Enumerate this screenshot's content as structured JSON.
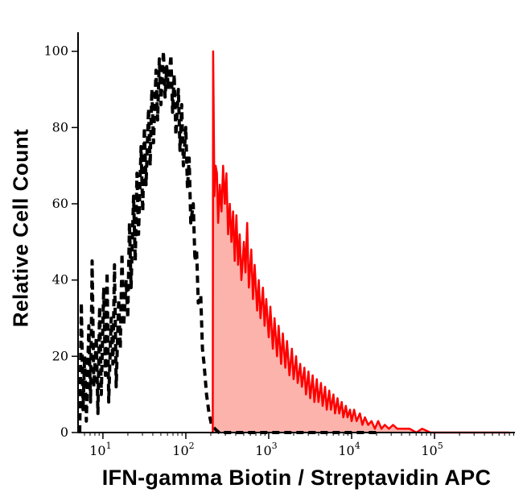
{
  "figure": {
    "background": "#ffffff"
  },
  "chart_data": {
    "type": "area",
    "subtype": "flow-cytometry-histogram-overlay",
    "title": "",
    "xlabel": "IFN-gamma Biotin / Streptavidin APC",
    "ylabel": "Relative Cell Count",
    "x_scale": "log10",
    "x_log_range": [
      0.7,
      5.97
    ],
    "x_ticks": [
      1,
      2,
      3,
      4,
      5
    ],
    "x_tick_base": "10",
    "ylim": [
      0,
      105
    ],
    "y_ticks": [
      0,
      20,
      40,
      60,
      80,
      100
    ],
    "grid": false,
    "legend": "none",
    "axis_color": "#000000",
    "points_format": "log10_x_vs_relative_count",
    "series": [
      {
        "name": "negative-control-black-dashed",
        "color": "#000000",
        "dash": "9 6",
        "width": 4,
        "fill": "none",
        "points": [
          [
            0.72,
            0
          ],
          [
            0.74,
            34
          ],
          [
            0.76,
            6
          ],
          [
            0.78,
            20
          ],
          [
            0.8,
            3
          ],
          [
            0.83,
            28
          ],
          [
            0.85,
            8
          ],
          [
            0.87,
            45
          ],
          [
            0.89,
            12
          ],
          [
            0.92,
            25
          ],
          [
            0.94,
            5
          ],
          [
            0.96,
            33
          ],
          [
            0.98,
            10
          ],
          [
            1.01,
            38
          ],
          [
            1.03,
            15
          ],
          [
            1.05,
            42
          ],
          [
            1.07,
            8
          ],
          [
            1.1,
            30
          ],
          [
            1.12,
            18
          ],
          [
            1.14,
            44
          ],
          [
            1.16,
            12
          ],
          [
            1.19,
            35
          ],
          [
            1.21,
            22
          ],
          [
            1.23,
            47
          ],
          [
            1.25,
            28
          ],
          [
            1.28,
            40
          ],
          [
            1.3,
            30
          ],
          [
            1.32,
            55
          ],
          [
            1.34,
            38
          ],
          [
            1.37,
            62
          ],
          [
            1.39,
            45
          ],
          [
            1.41,
            68
          ],
          [
            1.43,
            52
          ],
          [
            1.46,
            75
          ],
          [
            1.48,
            58
          ],
          [
            1.5,
            80
          ],
          [
            1.52,
            65
          ],
          [
            1.55,
            85
          ],
          [
            1.57,
            70
          ],
          [
            1.59,
            90
          ],
          [
            1.61,
            76
          ],
          [
            1.64,
            95
          ],
          [
            1.66,
            82
          ],
          [
            1.68,
            98
          ],
          [
            1.7,
            86
          ],
          [
            1.73,
            100
          ],
          [
            1.75,
            88
          ],
          [
            1.77,
            96
          ],
          [
            1.79,
            90
          ],
          [
            1.82,
            99
          ],
          [
            1.84,
            84
          ],
          [
            1.86,
            94
          ],
          [
            1.88,
            78
          ],
          [
            1.91,
            90
          ],
          [
            1.93,
            74
          ],
          [
            1.95,
            86
          ],
          [
            1.97,
            70
          ],
          [
            2.0,
            80
          ],
          [
            2.02,
            64
          ],
          [
            2.04,
            72
          ],
          [
            2.06,
            55
          ],
          [
            2.09,
            60
          ],
          [
            2.11,
            45
          ],
          [
            2.13,
            48
          ],
          [
            2.15,
            34
          ],
          [
            2.18,
            36
          ],
          [
            2.2,
            22
          ],
          [
            2.22,
            18
          ],
          [
            2.25,
            10
          ],
          [
            2.28,
            5
          ],
          [
            2.31,
            2
          ],
          [
            2.35,
            1
          ],
          [
            2.4,
            0
          ],
          [
            2.55,
            0
          ],
          [
            2.75,
            0
          ],
          [
            2.95,
            0
          ],
          [
            3.15,
            0
          ],
          [
            3.35,
            0
          ],
          [
            3.55,
            0
          ],
          [
            3.75,
            0
          ],
          [
            3.95,
            0
          ],
          [
            4.15,
            0
          ],
          [
            4.35,
            0
          ]
        ]
      },
      {
        "name": "stained-red-filled",
        "color": "#fe0000",
        "dash": "",
        "width": 2.5,
        "fill": "#fbb3ac",
        "points": [
          [
            2.31,
            0
          ],
          [
            2.325,
            0
          ],
          [
            2.33,
            100
          ],
          [
            2.345,
            62
          ],
          [
            2.36,
            70
          ],
          [
            2.375,
            68
          ],
          [
            2.39,
            55
          ],
          [
            2.41,
            65
          ],
          [
            2.43,
            58
          ],
          [
            2.45,
            70
          ],
          [
            2.47,
            60
          ],
          [
            2.49,
            68
          ],
          [
            2.51,
            52
          ],
          [
            2.53,
            60
          ],
          [
            2.55,
            50
          ],
          [
            2.57,
            58
          ],
          [
            2.59,
            45
          ],
          [
            2.61,
            57
          ],
          [
            2.63,
            44
          ],
          [
            2.65,
            52
          ],
          [
            2.67,
            40
          ],
          [
            2.7,
            50
          ],
          [
            2.72,
            42
          ],
          [
            2.74,
            55
          ],
          [
            2.76,
            38
          ],
          [
            2.79,
            48
          ],
          [
            2.81,
            35
          ],
          [
            2.83,
            44
          ],
          [
            2.86,
            32
          ],
          [
            2.88,
            40
          ],
          [
            2.9,
            30
          ],
          [
            2.93,
            38
          ],
          [
            2.95,
            28
          ],
          [
            2.97,
            35
          ],
          [
            3.0,
            25
          ],
          [
            3.02,
            33
          ],
          [
            3.05,
            22
          ],
          [
            3.07,
            30
          ],
          [
            3.1,
            20
          ],
          [
            3.12,
            28
          ],
          [
            3.15,
            18
          ],
          [
            3.17,
            26
          ],
          [
            3.2,
            17
          ],
          [
            3.22,
            24
          ],
          [
            3.25,
            15
          ],
          [
            3.28,
            22
          ],
          [
            3.3,
            14
          ],
          [
            3.33,
            20
          ],
          [
            3.35,
            13
          ],
          [
            3.38,
            18
          ],
          [
            3.4,
            12
          ],
          [
            3.43,
            17
          ],
          [
            3.45,
            10
          ],
          [
            3.48,
            16
          ],
          [
            3.5,
            9
          ],
          [
            3.53,
            15
          ],
          [
            3.55,
            8
          ],
          [
            3.58,
            14
          ],
          [
            3.6,
            8
          ],
          [
            3.63,
            13
          ],
          [
            3.65,
            7
          ],
          [
            3.68,
            12
          ],
          [
            3.7,
            6
          ],
          [
            3.73,
            11
          ],
          [
            3.75,
            6
          ],
          [
            3.78,
            10
          ],
          [
            3.8,
            5
          ],
          [
            3.83,
            9
          ],
          [
            3.85,
            5
          ],
          [
            3.88,
            8
          ],
          [
            3.9,
            4
          ],
          [
            3.93,
            7
          ],
          [
            3.95,
            4
          ],
          [
            3.98,
            6
          ],
          [
            4.0,
            3
          ],
          [
            4.03,
            6
          ],
          [
            4.06,
            3
          ],
          [
            4.1,
            5
          ],
          [
            4.13,
            2
          ],
          [
            4.16,
            4
          ],
          [
            4.2,
            2
          ],
          [
            4.24,
            3
          ],
          [
            4.28,
            1
          ],
          [
            4.32,
            3
          ],
          [
            4.36,
            1
          ],
          [
            4.4,
            2
          ],
          [
            4.45,
            1
          ],
          [
            4.5,
            2
          ],
          [
            4.55,
            1
          ],
          [
            4.62,
            1
          ],
          [
            4.7,
            1
          ],
          [
            4.78,
            0
          ],
          [
            4.85,
            1
          ],
          [
            4.95,
            0
          ],
          [
            5.1,
            0
          ],
          [
            5.3,
            0
          ],
          [
            5.55,
            0
          ],
          [
            5.9,
            0
          ]
        ]
      }
    ]
  }
}
